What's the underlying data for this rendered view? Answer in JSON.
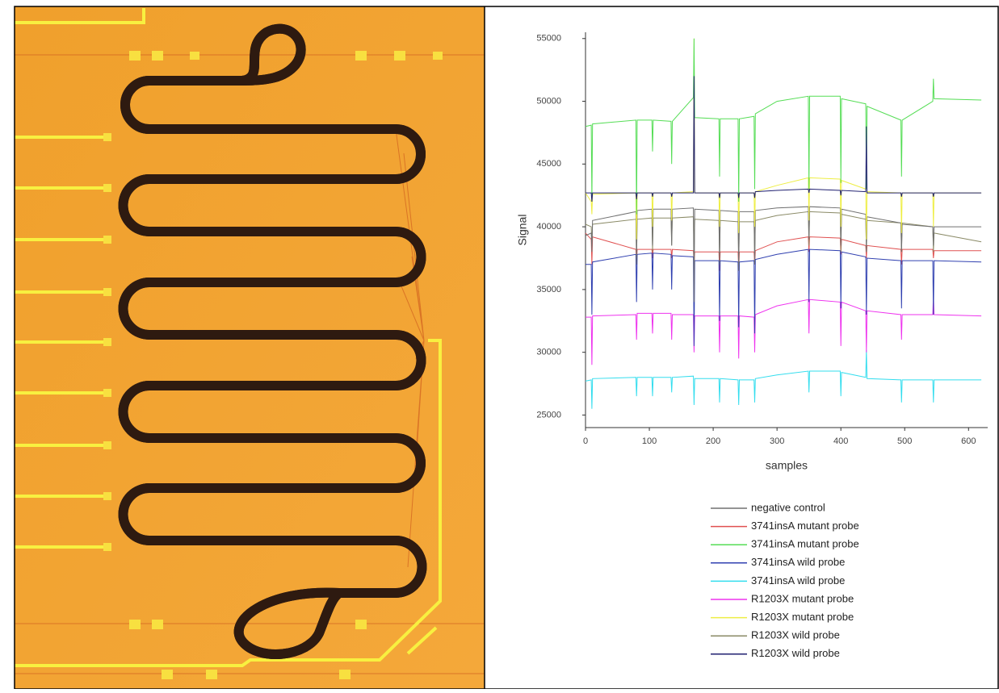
{
  "chart_data": {
    "type": "line",
    "x_label": "samples",
    "y_label": "Signal",
    "xlim": [
      0,
      630
    ],
    "ylim": [
      24000,
      55500
    ],
    "xticks": [
      0,
      100,
      200,
      300,
      400,
      500,
      600
    ],
    "yticks": [
      25000,
      30000,
      35000,
      40000,
      45000,
      50000,
      55000
    ],
    "x": [
      0,
      9,
      10,
      11,
      79,
      80,
      81,
      104,
      105,
      106,
      134,
      135,
      136,
      169,
      170,
      171,
      209,
      210,
      211,
      239,
      240,
      241,
      264,
      265,
      266,
      300,
      349,
      350,
      351,
      399,
      400,
      401,
      439,
      440,
      441,
      494,
      495,
      496,
      544,
      545,
      546,
      620
    ],
    "series": [
      {
        "name": "negative control",
        "color": "#707070",
        "values": [
          39300,
          39500,
          38000,
          40500,
          41200,
          37000,
          41300,
          41400,
          38500,
          41400,
          41400,
          38500,
          41400,
          41500,
          34000,
          41400,
          41300,
          37000,
          41300,
          41200,
          36500,
          41200,
          41200,
          37000,
          41300,
          41500,
          41600,
          39000,
          41600,
          41500,
          38500,
          41400,
          41000,
          38000,
          40800,
          40300,
          38000,
          40200,
          40000,
          38500,
          40000,
          40000
        ]
      },
      {
        "name": "3741insA mutant probe",
        "color": "#e05050",
        "values": [
          39500,
          39000,
          37000,
          39200,
          38200,
          37000,
          38200,
          38200,
          37500,
          38200,
          38200,
          37500,
          38200,
          38100,
          37000,
          38000,
          38000,
          36500,
          38000,
          38000,
          36500,
          38000,
          38000,
          37000,
          38100,
          38800,
          39200,
          38000,
          39200,
          39100,
          37800,
          39000,
          38500,
          37500,
          38500,
          38200,
          37000,
          38200,
          38200,
          37500,
          38100,
          38100
        ]
      },
      {
        "name": "3741insA mutant probe",
        "color": "#55dd55",
        "values": [
          48000,
          48100,
          42000,
          48200,
          48500,
          41000,
          48500,
          48500,
          46000,
          48500,
          48400,
          45000,
          48400,
          50300,
          55000,
          48700,
          48600,
          44000,
          48600,
          48600,
          42000,
          48600,
          48800,
          43000,
          49000,
          50000,
          50400,
          43000,
          50400,
          50400,
          43500,
          50200,
          49800,
          43000,
          49600,
          48500,
          44000,
          48500,
          50000,
          51800,
          50200,
          50100
        ]
      },
      {
        "name": "3741insA wild probe",
        "color": "#3040b0",
        "values": [
          37000,
          37000,
          33000,
          37200,
          37800,
          34000,
          37800,
          37900,
          35000,
          37900,
          37800,
          35000,
          37700,
          37600,
          30500,
          37300,
          37300,
          32500,
          37300,
          37200,
          32000,
          37200,
          37300,
          31500,
          37400,
          37800,
          38200,
          34000,
          38200,
          38100,
          33500,
          38000,
          37600,
          33000,
          37500,
          37300,
          33500,
          37300,
          37300,
          33000,
          37300,
          37200
        ]
      },
      {
        "name": "3741insA wild probe",
        "color": "#33ddee",
        "values": [
          27700,
          27800,
          25500,
          27900,
          28000,
          26500,
          28000,
          28000,
          26500,
          28000,
          28000,
          26800,
          28000,
          28100,
          25800,
          27900,
          27900,
          26000,
          27900,
          27800,
          25800,
          27800,
          27800,
          26000,
          27900,
          28200,
          28500,
          26800,
          28500,
          28500,
          26500,
          28400,
          28000,
          30200,
          27900,
          27800,
          26000,
          27800,
          27800,
          26000,
          27800,
          27800
        ]
      },
      {
        "name": "R1203X mutant probe",
        "color": "#ee33ee",
        "values": [
          32800,
          32800,
          29000,
          32900,
          33000,
          31000,
          33100,
          33100,
          31500,
          33100,
          33100,
          31000,
          33000,
          33000,
          30000,
          32900,
          32900,
          30000,
          32900,
          32900,
          29500,
          32900,
          32800,
          30000,
          33000,
          33700,
          34200,
          31500,
          34200,
          34000,
          30500,
          34000,
          33300,
          30000,
          33300,
          33000,
          31000,
          33000,
          33000,
          34500,
          33000,
          32900
        ]
      },
      {
        "name": "R1203X mutant probe",
        "color": "#eeee44",
        "values": [
          42700,
          42000,
          41000,
          42600,
          42700,
          39000,
          42700,
          42700,
          40000,
          42700,
          42700,
          40500,
          42700,
          42800,
          55000,
          42700,
          42700,
          40000,
          42700,
          42700,
          39500,
          42700,
          42700,
          40000,
          42800,
          43300,
          43900,
          40500,
          43900,
          43800,
          40000,
          43700,
          43000,
          39000,
          42800,
          42700,
          39500,
          42700,
          42700,
          40000,
          42700,
          42700
        ]
      },
      {
        "name": "R1203X wild probe",
        "color": "#8a8a66",
        "values": [
          40200,
          40000,
          38500,
          40200,
          40600,
          37500,
          40600,
          40700,
          38000,
          40700,
          40700,
          38500,
          40700,
          40800,
          38000,
          40600,
          40500,
          37500,
          40500,
          40400,
          37000,
          40400,
          40400,
          37500,
          40500,
          40900,
          41200,
          38500,
          41200,
          41100,
          38000,
          41000,
          40600,
          38000,
          40500,
          40300,
          38000,
          40300,
          40000,
          38000,
          39500,
          38800
        ]
      },
      {
        "name": "R1203X wild probe",
        "color": "#202070",
        "values": [
          42700,
          42700,
          42000,
          42700,
          42700,
          42200,
          42700,
          42700,
          42400,
          42700,
          42700,
          42400,
          42700,
          42700,
          52000,
          42700,
          42700,
          42300,
          42700,
          42700,
          42300,
          42700,
          42700,
          42300,
          42800,
          42900,
          43000,
          42700,
          43000,
          42900,
          42500,
          42900,
          42800,
          48000,
          42700,
          42700,
          42400,
          42700,
          42700,
          42400,
          42700,
          42700
        ]
      }
    ]
  }
}
